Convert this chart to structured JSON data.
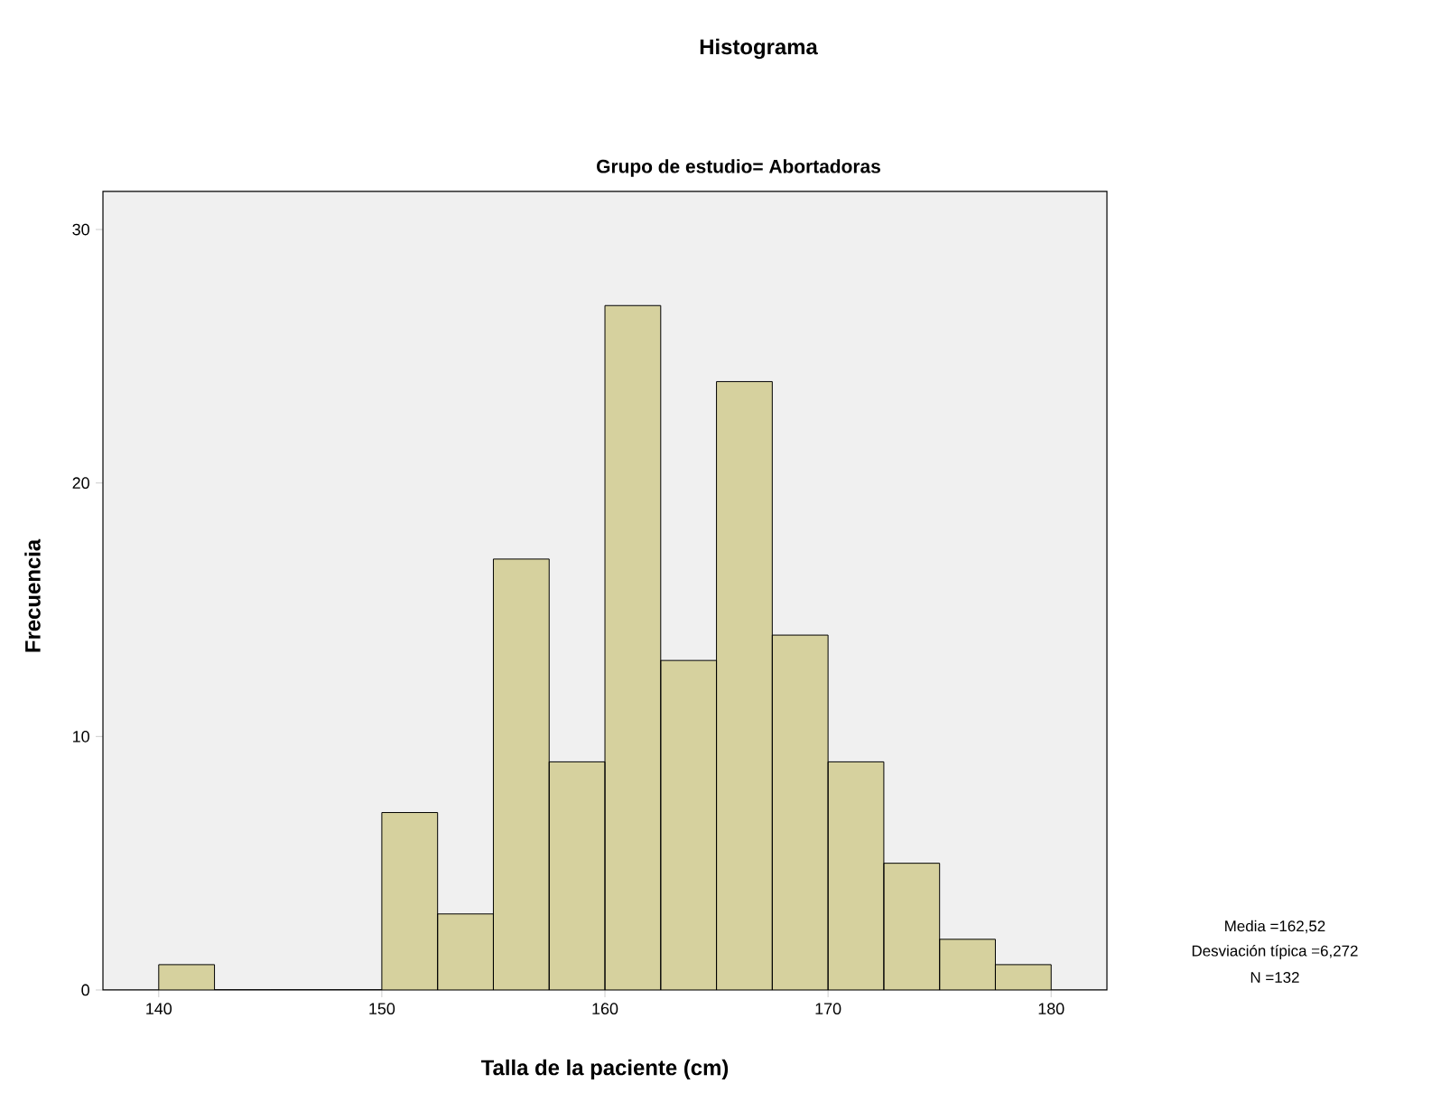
{
  "chart_data": {
    "type": "histogram",
    "title": "Histograma",
    "subtitle": "Grupo de estudio= Abortadoras",
    "xlabel": "Talla de la paciente (cm)",
    "ylabel": "Frecuencia",
    "bins": [
      140,
      142.5,
      145,
      147.5,
      150,
      152.5,
      155,
      157.5,
      160,
      162.5,
      165,
      167.5,
      170,
      172.5,
      175,
      177.5,
      180
    ],
    "values": [
      1,
      0,
      0,
      0,
      7,
      3,
      17,
      9,
      27,
      13,
      24,
      14,
      9,
      5,
      2,
      1
    ],
    "color": "#d6d19e",
    "xlim": [
      137.5,
      182.5
    ],
    "ylim": [
      0,
      31.5
    ],
    "xticks": [
      140,
      150,
      160,
      170,
      180
    ],
    "yticks": [
      0,
      10,
      20,
      30
    ],
    "annotations": [
      "Media =162,52",
      "Desviación típica =6,272",
      "N =132"
    ]
  }
}
